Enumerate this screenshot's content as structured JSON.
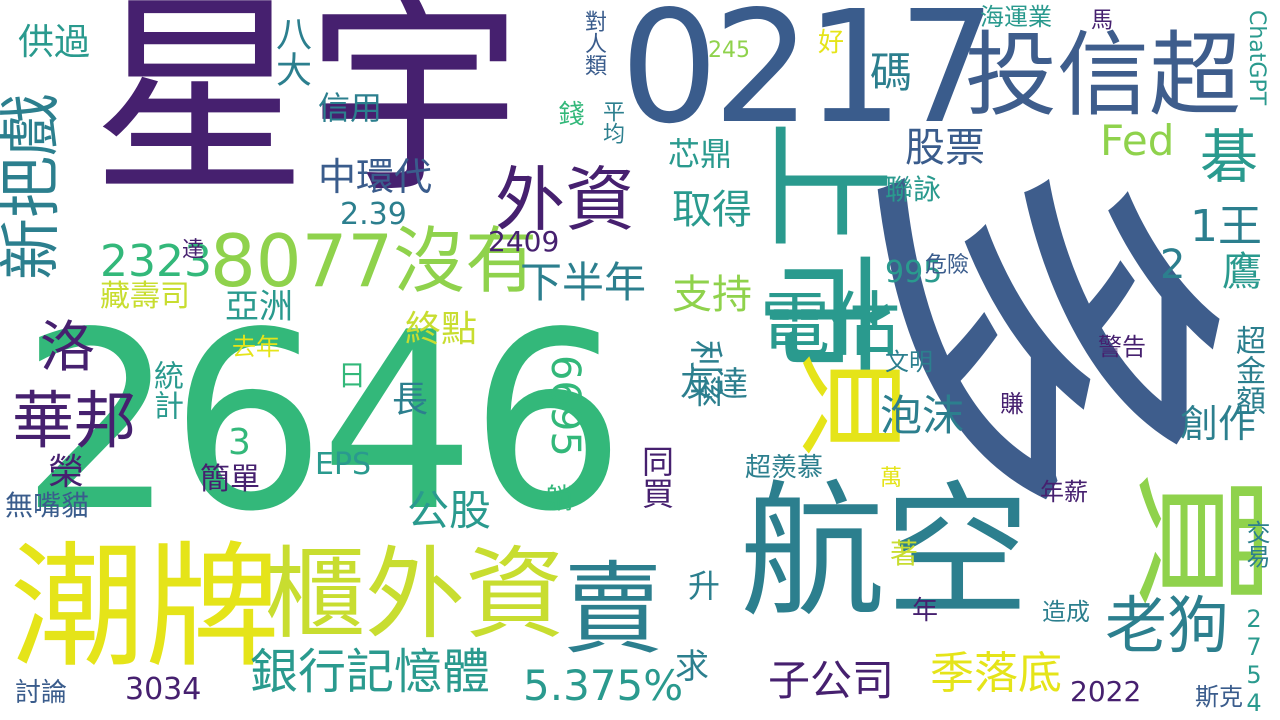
{
  "palette": {
    "dark_purple": "#46206f",
    "indigo": "#3a5c8c",
    "blue": "#3e5d8c",
    "teal": "#2a8c8b",
    "teal_dark": "#2c7f8e",
    "green": "#33b87a",
    "lime": "#c8dd30",
    "yellow": "#e5e419",
    "light_green": "#8fd24c"
  },
  "words": {
    "w_xingyu": "星宇",
    "w_duo": "多",
    "w_0217": "0217",
    "w_2646": "2646",
    "w_shangshi": "上市",
    "w_touxinchao": "投信超",
    "w_hangkong": "航空",
    "w_mai": "買",
    "w_chaopai": "潮牌",
    "w_guiwaizi": "櫃外資",
    "w_mai2": "賣",
    "w_waizi": "外資",
    "w_8077": "8077沒有",
    "w_bei": "貝",
    "w_dianggu": "電估",
    "w_xinbaxi": "新把戲",
    "w_huabang": "華邦",
    "w_luo": "洛",
    "w_laogou": "老狗",
    "w_yinhang": "銀行記憶體",
    "w_jiluodi": "季落底",
    "w_5375": "5.375%",
    "w_zigongsi": "子公司",
    "w_ji": "碁",
    "w_2323": "2323",
    "w_xiabannian": "下半年",
    "w_zhichi": "支持",
    "w_qude": "取得",
    "w_zhonghuan": "中環代",
    "w_gupiao": "股票",
    "w_fed": "Fed",
    "w_ma": "碼",
    "w_gonggu": "公股",
    "w_paomo": "泡沫",
    "w_chuangzuo": "創作",
    "w_zhongdian": "終點",
    "w_1wang": "1王",
    "w_ying": "鷹",
    "w_2": "2",
    "w_gongguo": "供過",
    "w_bada": "八大",
    "w_xinyong": "信用",
    "w_xinding": "芯鼎",
    "w_lianyong": "聯詠",
    "w_239": "2.39",
    "w_2409": "2409",
    "w_995": "995",
    "w_6695": "6695",
    "w_3": "3",
    "w_liluo": "利率",
    "w_youda": "友達",
    "w_yaping": "亞洲",
    "w_zangshousi": "藏壽司",
    "w_qunian": "去年",
    "w_tongji": "統計",
    "w_ri": "日",
    "w_chang": "長",
    "w_rong": "榮",
    "w_eps": "EPS",
    "w_jiandan": "簡單",
    "w_wuzuimao": "無嘴貓",
    "w_tongmai": "同買",
    "w_duo2": "躺",
    "w_chaoxianmu": "超羨慕",
    "w_wan": "萬",
    "w_sheng": "升",
    "w_qiu": "求",
    "w_zhu": "著",
    "w_nian": "年",
    "w_zaocheng": "造成",
    "w_3034": "3034",
    "w_taolun": "討論",
    "w_2022": "2022",
    "w_sike": "斯克",
    "w_2754": "2754",
    "w_jiaoyi": "交易",
    "w_nianxin": "年薪",
    "w_jinggao": "警告",
    "w_zhuan": "賺",
    "w_wenming": "文明",
    "w_weixian": "危險",
    "w_chaojine": "超金額",
    "w_haiyunye": "海運業",
    "w_ma2": "馬",
    "w_chatgpt": "ChatGPT",
    "w_245": "245",
    "w_hao": "好",
    "w_duirenlei": "對人類",
    "w_pingjun": "平均",
    "w_qian": "錢",
    "w_da": "達"
  }
}
